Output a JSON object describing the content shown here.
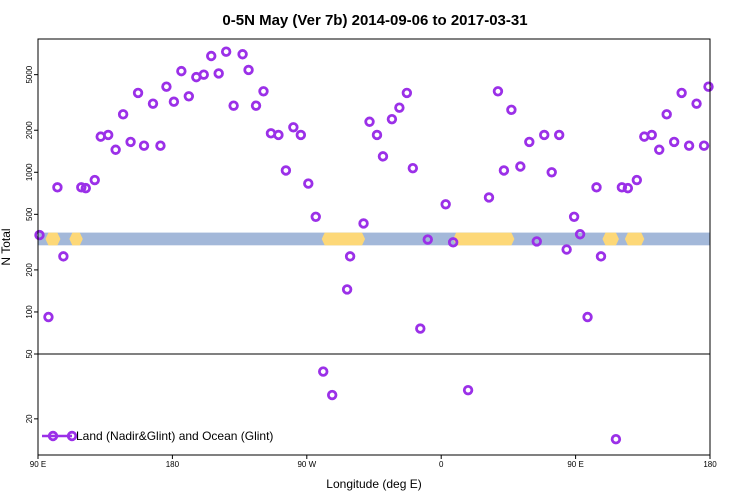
{
  "chart_data": {
    "type": "scatter",
    "title": "0-5N May (Ver 7b)   2014-09-06 to 2017-03-31",
    "xlabel": "Longitude (deg E)",
    "ylabel": "N Total",
    "x_ticks": [
      {
        "value": 90,
        "label": "90 E"
      },
      {
        "value": 180,
        "label": "180"
      },
      {
        "value": 270,
        "label": "90 W"
      },
      {
        "value": 360,
        "label": "0"
      },
      {
        "value": 450,
        "label": "90 E"
      },
      {
        "value": 540,
        "label": "180"
      }
    ],
    "y_ticks_upper": [
      {
        "value": 100,
        "label": "100"
      },
      {
        "value": 200,
        "label": "200"
      },
      {
        "value": 500,
        "label": "500"
      },
      {
        "value": 1000,
        "label": "1000"
      },
      {
        "value": 2000,
        "label": "2000"
      },
      {
        "value": 5000,
        "label": "5000"
      }
    ],
    "y_ticks_lower": [
      {
        "value": 20,
        "label": "20"
      },
      {
        "value": 50,
        "label": "50"
      }
    ],
    "xlim": [
      90,
      540
    ],
    "ylim_upper": [
      50,
      9000
    ],
    "ylim_lower": [
      12,
      50
    ],
    "y_scale": "log",
    "grid": false,
    "legend_position": "bottom-left",
    "colors": {
      "marker": "#9b30e8",
      "land_band": "#a3b8d9",
      "ocean_band": "#fdd878",
      "axis": "#000000"
    },
    "band": {
      "y_low": 300,
      "y_high": 370,
      "ocean_ranges": [
        [
          97,
          103
        ],
        [
          113,
          118
        ],
        [
          282,
          307
        ],
        [
          370,
          407
        ],
        [
          470,
          477
        ],
        [
          485,
          494
        ]
      ]
    },
    "series": [
      {
        "name": "Land (Nadir&Glint) and Ocean (Glint)",
        "points": [
          [
            91,
            355
          ],
          [
            97,
            92
          ],
          [
            103,
            780
          ],
          [
            107,
            250
          ],
          [
            119,
            780
          ],
          [
            122,
            770
          ],
          [
            128,
            880
          ],
          [
            132,
            1800
          ],
          [
            137,
            1850
          ],
          [
            142,
            1450
          ],
          [
            147,
            2600
          ],
          [
            152,
            1650
          ],
          [
            157,
            3700
          ],
          [
            161,
            1550
          ],
          [
            167,
            3100
          ],
          [
            172,
            1550
          ],
          [
            176,
            4100
          ],
          [
            181,
            3200
          ],
          [
            186,
            5300
          ],
          [
            191,
            3500
          ],
          [
            196,
            4800
          ],
          [
            201,
            5000
          ],
          [
            206,
            6800
          ],
          [
            211,
            5100
          ],
          [
            216,
            7300
          ],
          [
            221,
            3000
          ],
          [
            227,
            7000
          ],
          [
            231,
            5400
          ],
          [
            236,
            3000
          ],
          [
            241,
            3800
          ],
          [
            246,
            1900
          ],
          [
            251,
            1850
          ],
          [
            256,
            1030
          ],
          [
            261,
            2100
          ],
          [
            266,
            1850
          ],
          [
            271,
            830
          ],
          [
            276,
            480
          ],
          [
            281,
            39
          ],
          [
            287,
            28
          ],
          [
            297,
            145
          ],
          [
            299,
            250
          ],
          [
            308,
            430
          ],
          [
            312,
            2300
          ],
          [
            317,
            1850
          ],
          [
            321,
            1300
          ],
          [
            327,
            2400
          ],
          [
            332,
            2900
          ],
          [
            337,
            3700
          ],
          [
            341,
            1070
          ],
          [
            346,
            76
          ],
          [
            351,
            330
          ],
          [
            363,
            590
          ],
          [
            368,
            315
          ],
          [
            378,
            30
          ],
          [
            392,
            660
          ],
          [
            398,
            3800
          ],
          [
            402,
            1030
          ],
          [
            407,
            2800
          ],
          [
            413,
            1100
          ],
          [
            419,
            1650
          ],
          [
            424,
            320
          ],
          [
            429,
            1850
          ],
          [
            434,
            1000
          ],
          [
            439,
            1850
          ],
          [
            444,
            280
          ],
          [
            449,
            480
          ],
          [
            453,
            360
          ],
          [
            458,
            92
          ],
          [
            464,
            780
          ],
          [
            467,
            250
          ],
          [
            477,
            15
          ],
          [
            481,
            780
          ],
          [
            485,
            770
          ],
          [
            491,
            880
          ],
          [
            496,
            1800
          ],
          [
            501,
            1850
          ],
          [
            506,
            1450
          ],
          [
            511,
            2600
          ],
          [
            516,
            1650
          ],
          [
            521,
            3700
          ],
          [
            526,
            1550
          ],
          [
            531,
            3100
          ],
          [
            536,
            1550
          ],
          [
            539,
            4100
          ]
        ]
      }
    ]
  }
}
